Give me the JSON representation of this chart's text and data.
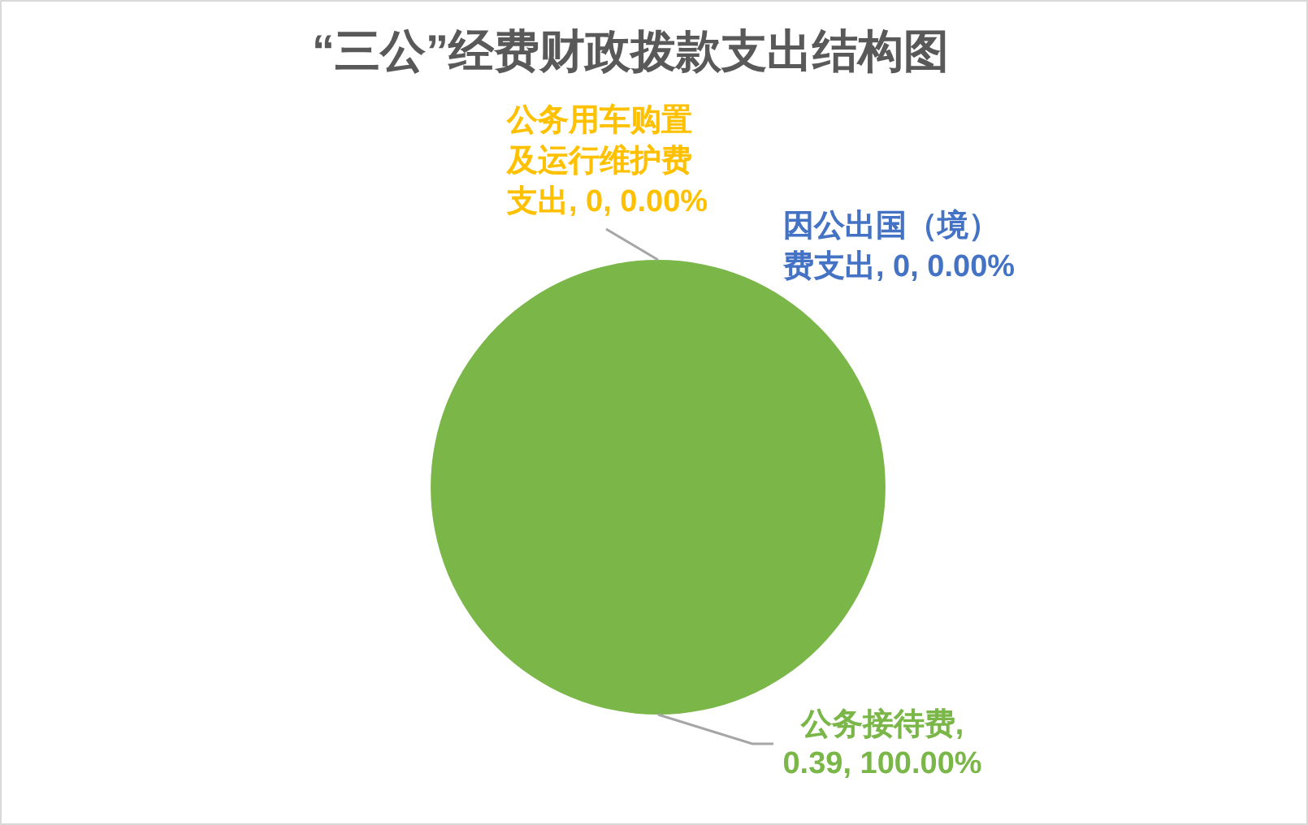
{
  "chart_data": {
    "type": "pie",
    "title": "“三公”经费财政拨款支出结构图",
    "categories": [
      "因公出国（境）费支出",
      "公务用车购置及运行维护费支出",
      "公务接待费"
    ],
    "values": [
      0,
      0,
      0.39
    ],
    "colors": [
      "#4472c4",
      "#ffc000",
      "#7ab648"
    ],
    "value_labels": [
      ", 0, 0.00%",
      ", 0, 0.00%",
      ", 0.39, 100.00%"
    ]
  }
}
